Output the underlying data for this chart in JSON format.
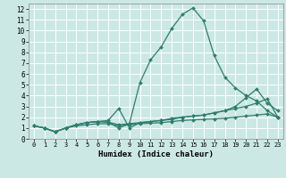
{
  "xlabel": "Humidex (Indice chaleur)",
  "bg_color": "#cce8e4",
  "grid_color": "#ffffff",
  "line_color": "#2e7d6e",
  "xlim": [
    -0.5,
    23.5
  ],
  "ylim": [
    0,
    12.5
  ],
  "xticks": [
    0,
    1,
    2,
    3,
    4,
    5,
    6,
    7,
    8,
    9,
    10,
    11,
    12,
    13,
    14,
    15,
    16,
    17,
    18,
    19,
    20,
    21,
    22,
    23
  ],
  "yticks": [
    0,
    1,
    2,
    3,
    4,
    5,
    6,
    7,
    8,
    9,
    10,
    11,
    12
  ],
  "series": [
    [
      1.2,
      1.0,
      0.65,
      1.0,
      1.3,
      1.5,
      1.6,
      1.55,
      1.0,
      1.4,
      5.2,
      7.3,
      8.5,
      10.2,
      11.5,
      12.1,
      10.9,
      7.7,
      5.7,
      4.7,
      4.0,
      3.5,
      2.6,
      2.0
    ],
    [
      1.2,
      1.0,
      0.65,
      1.0,
      1.3,
      1.5,
      1.6,
      1.7,
      2.8,
      1.0,
      1.5,
      1.6,
      1.7,
      1.8,
      2.0,
      2.1,
      2.2,
      2.4,
      2.6,
      3.0,
      3.8,
      4.6,
      3.3,
      2.6
    ],
    [
      1.2,
      1.0,
      0.65,
      1.0,
      1.3,
      1.5,
      1.6,
      1.55,
      1.3,
      1.4,
      1.5,
      1.6,
      1.7,
      1.9,
      2.0,
      2.1,
      2.2,
      2.4,
      2.6,
      2.8,
      3.0,
      3.3,
      3.7,
      2.0
    ],
    [
      1.2,
      1.0,
      0.65,
      1.0,
      1.2,
      1.3,
      1.4,
      1.4,
      1.2,
      1.3,
      1.4,
      1.45,
      1.5,
      1.6,
      1.7,
      1.75,
      1.8,
      1.85,
      1.9,
      2.0,
      2.1,
      2.2,
      2.3,
      2.0
    ]
  ]
}
